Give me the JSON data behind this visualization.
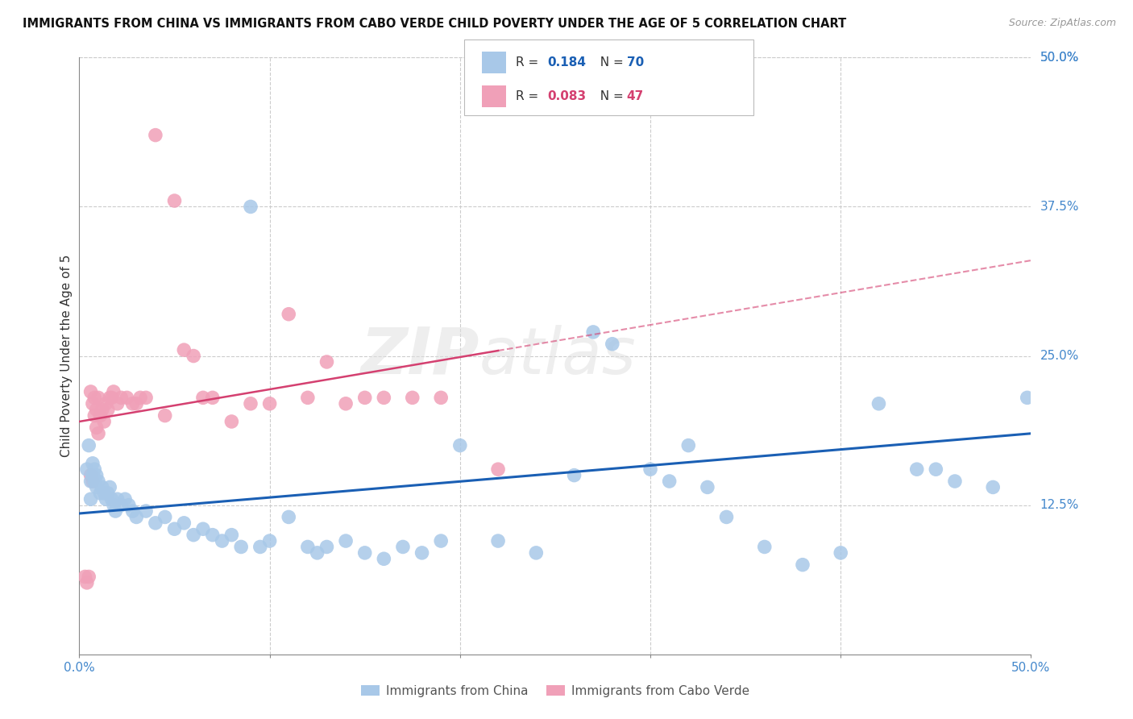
{
  "title": "IMMIGRANTS FROM CHINA VS IMMIGRANTS FROM CABO VERDE CHILD POVERTY UNDER THE AGE OF 5 CORRELATION CHART",
  "source": "Source: ZipAtlas.com",
  "ylabel": "Child Poverty Under the Age of 5",
  "x_min": 0.0,
  "x_max": 0.5,
  "y_min": 0.0,
  "y_max": 0.5,
  "y_tick_labels_right": [
    "50.0%",
    "37.5%",
    "25.0%",
    "12.5%"
  ],
  "y_tick_positions_right": [
    0.5,
    0.375,
    0.25,
    0.125
  ],
  "legend_china_r": "0.184",
  "legend_china_n": "70",
  "legend_cabo_r": "0.083",
  "legend_cabo_n": "47",
  "china_color": "#a8c8e8",
  "cabo_color": "#f0a0b8",
  "china_line_color": "#1a5fb4",
  "cabo_line_color": "#d44070",
  "background_color": "#ffffff",
  "grid_color": "#cccccc",
  "china_scatter_x": [
    0.004,
    0.005,
    0.006,
    0.006,
    0.007,
    0.007,
    0.008,
    0.008,
    0.009,
    0.009,
    0.01,
    0.011,
    0.012,
    0.013,
    0.014,
    0.015,
    0.016,
    0.017,
    0.018,
    0.019,
    0.02,
    0.022,
    0.024,
    0.026,
    0.028,
    0.03,
    0.035,
    0.04,
    0.045,
    0.05,
    0.055,
    0.06,
    0.065,
    0.07,
    0.075,
    0.08,
    0.085,
    0.09,
    0.095,
    0.1,
    0.11,
    0.12,
    0.125,
    0.13,
    0.14,
    0.15,
    0.16,
    0.17,
    0.18,
    0.19,
    0.2,
    0.22,
    0.24,
    0.26,
    0.27,
    0.28,
    0.3,
    0.31,
    0.32,
    0.33,
    0.34,
    0.36,
    0.38,
    0.4,
    0.42,
    0.44,
    0.45,
    0.46,
    0.48,
    0.498
  ],
  "china_scatter_y": [
    0.155,
    0.175,
    0.145,
    0.13,
    0.16,
    0.15,
    0.155,
    0.145,
    0.14,
    0.15,
    0.145,
    0.135,
    0.14,
    0.135,
    0.13,
    0.135,
    0.14,
    0.13,
    0.125,
    0.12,
    0.13,
    0.125,
    0.13,
    0.125,
    0.12,
    0.115,
    0.12,
    0.11,
    0.115,
    0.105,
    0.11,
    0.1,
    0.105,
    0.1,
    0.095,
    0.1,
    0.09,
    0.375,
    0.09,
    0.095,
    0.115,
    0.09,
    0.085,
    0.09,
    0.095,
    0.085,
    0.08,
    0.09,
    0.085,
    0.095,
    0.175,
    0.095,
    0.085,
    0.15,
    0.27,
    0.26,
    0.155,
    0.145,
    0.175,
    0.14,
    0.115,
    0.09,
    0.075,
    0.085,
    0.21,
    0.155,
    0.155,
    0.145,
    0.14,
    0.215
  ],
  "cabo_scatter_x": [
    0.003,
    0.004,
    0.005,
    0.006,
    0.006,
    0.007,
    0.007,
    0.008,
    0.008,
    0.009,
    0.009,
    0.01,
    0.01,
    0.011,
    0.012,
    0.013,
    0.014,
    0.015,
    0.016,
    0.017,
    0.018,
    0.02,
    0.022,
    0.025,
    0.028,
    0.03,
    0.032,
    0.035,
    0.04,
    0.045,
    0.05,
    0.055,
    0.06,
    0.065,
    0.07,
    0.08,
    0.09,
    0.1,
    0.11,
    0.12,
    0.13,
    0.14,
    0.15,
    0.16,
    0.175,
    0.19,
    0.22
  ],
  "cabo_scatter_y": [
    0.065,
    0.06,
    0.065,
    0.15,
    0.22,
    0.145,
    0.21,
    0.2,
    0.215,
    0.19,
    0.205,
    0.185,
    0.215,
    0.2,
    0.205,
    0.195,
    0.21,
    0.205,
    0.215,
    0.215,
    0.22,
    0.21,
    0.215,
    0.215,
    0.21,
    0.21,
    0.215,
    0.215,
    0.435,
    0.2,
    0.38,
    0.255,
    0.25,
    0.215,
    0.215,
    0.195,
    0.21,
    0.21,
    0.285,
    0.215,
    0.245,
    0.21,
    0.215,
    0.215,
    0.215,
    0.215,
    0.155
  ],
  "china_trendline_x": [
    0.0,
    0.5
  ],
  "china_trendline_y": [
    0.118,
    0.185
  ],
  "cabo_trendline_x": [
    0.0,
    0.5
  ],
  "cabo_trendline_y": [
    0.195,
    0.33
  ],
  "cabo_trendline_solid_end": 0.22,
  "tick_label_color": "#4488cc",
  "axis_color": "#888888"
}
